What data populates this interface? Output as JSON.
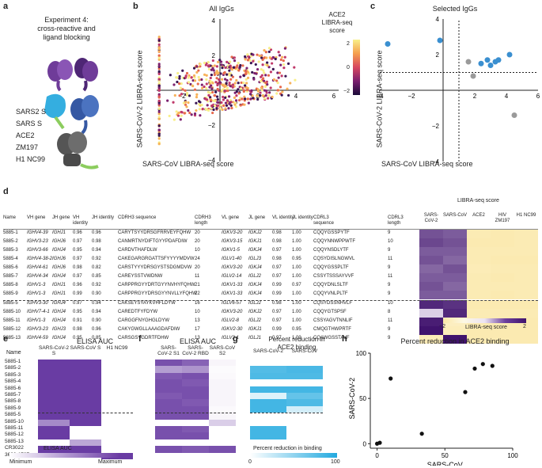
{
  "panels": {
    "a": {
      "letter": "a",
      "title_lines": [
        "Experiment 4:",
        "cross-reactive and",
        "ligand blocking"
      ],
      "labels": [
        "SARS2 S",
        "SARS S",
        "ACE2",
        "ZM197",
        "H1 NC99"
      ],
      "colors": {
        "sars2": "#7b3f9e",
        "sars": "#5b2d82",
        "ace2": "#2ea8dc",
        "zm197": "#3d5fa8",
        "h1": "#5a5a5a"
      }
    },
    "b": {
      "letter": "b",
      "title": "All IgGs",
      "xlabel": "SARS-CoV LIBRA-seq score",
      "ylabel": "SARS-CoV-2 LIBRA-seq score",
      "legend_title_lines": [
        "ACE2",
        "LIBRA-seq",
        "score"
      ],
      "legend_ticks": [
        "2",
        "0",
        "−2"
      ]
    },
    "c": {
      "letter": "c",
      "title": "Selected IgGs",
      "xlabel": "SARS-CoV LIBRA-seq score",
      "ylabel": "SARS-CoV-2 LIBRA-seq score"
    },
    "d": {
      "letter": "d",
      "libra_header": "LIBRA-seq score",
      "colorbar_label": "LIBRA-seq score",
      "colorbar_ticks": [
        "−2",
        "2"
      ]
    },
    "e": {
      "letter": "e",
      "title": "ELISA AUC",
      "name_header": "Name",
      "colorbar_label": "ELISA AUC",
      "min_label": "Minimum",
      "max_label": "Maximum"
    },
    "f": {
      "letter": "f",
      "title": "ELISA AUC"
    },
    "g": {
      "letter": "g",
      "title_lines": [
        "Percent reduction in",
        "ACE2 binding"
      ],
      "colorbar_label": "Percent reduction in binding",
      "colorbar_ticks": [
        "0",
        "100"
      ]
    },
    "h": {
      "letter": "h",
      "title": "Percent reduction in ACE2 binding"
    }
  },
  "table": {
    "headers": [
      "Name",
      "VH gene",
      "JH gene",
      "VH identity",
      "JH identity",
      "CDRH3 sequence",
      "CDRH3 length",
      "VL gene",
      "JL gene",
      "VL identity",
      "JL identity",
      "CDRL3 sequence",
      "CDRL3 length"
    ],
    "libra_cols": [
      "SARS-CoV-2",
      "SARS-CoV",
      "ACE2",
      "HIV ZM197",
      "H1 NC99"
    ],
    "rows": [
      [
        "5885-1",
        "IGHV4-39",
        "IGHJ1",
        "0.96",
        "0.96",
        "CARYTSYYDRSGFRRVEYFQHW",
        "20",
        "IGKV3-20",
        "IGKJ2",
        "0.98",
        "1.00",
        "CQQYGSSPYTF",
        "9"
      ],
      [
        "5885-2",
        "IGHV3-23",
        "IGHJ6",
        "0.97",
        "0.98",
        "CANMRTNYDIFTGYYPDAFDIW",
        "20",
        "IGKV3-15",
        "IGKJ1",
        "0.98",
        "1.00",
        "CQQYNNWPPWTF",
        "10"
      ],
      [
        "5885-3",
        "IGHV3-66",
        "IGHJ4",
        "0.95",
        "0.94",
        "CARDVTHAFDLW",
        "10",
        "IGKV1-5",
        "IGKJ4",
        "0.97",
        "1.00",
        "CQQYNSDLYTF",
        "9"
      ],
      [
        "5885-4",
        "IGHV4-38-2",
        "IGHJ6",
        "0.97",
        "0.92",
        "CAKEGARGRGATTSFYYYYMDVW",
        "24",
        "IGLV1-40",
        "IGLJ3",
        "0.98",
        "0.95",
        "CQSYDISLNGWVL",
        "11"
      ],
      [
        "5885-6",
        "IGHV4-61",
        "IGHJ6",
        "0.98",
        "0.82",
        "CARSTYYYDRSGYSTSDGMDVW",
        "20",
        "IGKV3-20",
        "IGKJ4",
        "0.97",
        "1.00",
        "CQQYGSSPLTF",
        "9"
      ],
      [
        "5885-7",
        "IGHV4-34",
        "IGHJ4",
        "0.97",
        "0.85",
        "CAREYSSTVWDNW",
        "11",
        "IGLV2-14",
        "IGLJ2",
        "0.97",
        "1.00",
        "CSSYTSSSAYVVF",
        "11"
      ],
      [
        "5885-8",
        "IGHV1-3",
        "IGHJ1",
        "0.96",
        "0.92",
        "CARPPRGYYDRTGYYNVHYFQHW",
        "21",
        "IGKV1-33",
        "IGKJ4",
        "0.99",
        "0.97",
        "CQQYDNLSLTF",
        "9"
      ],
      [
        "5885-9",
        "IGHV1-3",
        "IGHJ1",
        "0.99",
        "0.90",
        "CARPPRGYYDRSGYYNVLLYFQHW",
        "22",
        "IGKV1-33",
        "IGKJ4",
        "0.99",
        "1.00",
        "CQQYVNLPLTF",
        "9"
      ],
      [
        "5885-5",
        "IGHV3-30",
        "IGHJ4",
        "0.97",
        "0.94",
        "CAKSEYSYAYKVHFLDYW",
        "16",
        "IGLV6-57",
        "IGLJ2",
        "0.98",
        "1.00",
        "CQSYDSSNHVLF",
        "10"
      ],
      [
        "5885-10",
        "IGHV7-4-1",
        "IGHJ4",
        "0.95",
        "0.94",
        "CAREDTFYFDYW",
        "10",
        "IGKV3-20",
        "IGKJ2",
        "0.97",
        "1.00",
        "CQQYGTSPSF",
        "8"
      ],
      [
        "5885-11",
        "IGHV1-3",
        "IGHJ4",
        "0.91",
        "0.90",
        "CARGGFNYGHGLDYW",
        "13",
        "IGLV2-8",
        "IGLJ2",
        "0.97",
        "1.00",
        "CSSYAGVTNNLIF",
        "11"
      ],
      [
        "5885-12",
        "IGHV3-23",
        "IGHJ3",
        "0.98",
        "0.96",
        "CAKYGWGLLAAAGDAFDIW",
        "17",
        "IGKV2-30",
        "IGKJ1",
        "0.99",
        "0.95",
        "CMQGTHWPRTF",
        "9"
      ],
      [
        "5885-13",
        "IGHV4-59",
        "IGHJ4",
        "0.95",
        "0.85",
        "CARSGSYGDRTFDHW",
        "13",
        "IGLV3-1",
        "IGLJ1",
        "0.97",
        "1.00",
        "CQAWGSSTAVF",
        "9"
      ]
    ],
    "libra_values": [
      [
        1.4,
        1.3,
        -1.6,
        -1.7,
        -1.6
      ],
      [
        1.5,
        1.4,
        -1.7,
        -1.7,
        -1.6
      ],
      [
        1.3,
        1.3,
        -1.6,
        -1.6,
        -1.6
      ],
      [
        1.4,
        1.2,
        -1.6,
        -1.7,
        -1.7
      ],
      [
        1.2,
        1.4,
        -1.5,
        -1.6,
        -1.6
      ],
      [
        1.3,
        1.3,
        -1.6,
        -1.7,
        -1.6
      ],
      [
        1.4,
        1.2,
        -1.6,
        -1.6,
        -1.6
      ],
      [
        1.3,
        1.3,
        -1.6,
        -1.7,
        -1.6
      ],
      [
        1.8,
        1.7,
        -1.7,
        -1.7,
        -1.7
      ],
      [
        0.2,
        1.8,
        -1.6,
        -1.6,
        -1.6
      ],
      [
        1.9,
        -1.2,
        -1.7,
        -1.7,
        -1.7
      ],
      [
        2.0,
        -1.4,
        -1.7,
        -1.7,
        -1.7
      ],
      [
        -1.5,
        2.0,
        -1.7,
        -1.7,
        -1.7
      ]
    ]
  },
  "elisa": {
    "names": [
      "5885-1",
      "5885-2",
      "5885-3",
      "5885-4",
      "5885-6",
      "5885-7",
      "5885-8",
      "5885-9",
      "5885-5",
      "5885-10",
      "5885-11",
      "5885-12",
      "5885-13",
      "CR3022",
      "3602-1707"
    ],
    "e_cols": [
      "SARS-CoV-2 S",
      "SARS-CoV S",
      "H1 NC99"
    ],
    "e_values": [
      [
        1,
        1,
        0
      ],
      [
        1,
        1,
        0
      ],
      [
        1,
        1,
        0
      ],
      [
        1,
        1,
        0
      ],
      [
        1,
        1,
        0
      ],
      [
        1,
        1,
        0
      ],
      [
        1,
        1,
        0
      ],
      [
        1,
        1,
        0
      ],
      [
        1,
        1,
        0
      ],
      [
        0.6,
        1,
        0
      ],
      [
        1,
        0,
        0
      ],
      [
        1,
        0,
        0
      ],
      [
        0,
        0.45,
        0
      ],
      [
        1,
        1,
        0
      ],
      [
        0,
        0,
        1
      ]
    ],
    "f_cols": [
      "SARS-CoV-2 S1",
      "SARS-CoV-2 RBD",
      "SARS-CoV S2"
    ],
    "f_values": [
      [
        0.9,
        0.8,
        0.05
      ],
      [
        0.5,
        0.55,
        0.02
      ],
      [
        0.85,
        0.9,
        0.03
      ],
      [
        0.9,
        0.85,
        0.05
      ],
      [
        0.9,
        0.9,
        0.05
      ],
      [
        0.85,
        0.9,
        0.05
      ],
      [
        0.9,
        0.85,
        0.05
      ],
      [
        0.9,
        0.9,
        0.03
      ],
      [
        0.9,
        0.9,
        0.05
      ],
      [
        0,
        0,
        0.25
      ],
      [
        0.9,
        0.85,
        0.0
      ],
      [
        0.9,
        0.9,
        0.0
      ],
      [
        0,
        0,
        0.0
      ],
      [
        0.9,
        0.85,
        0.9
      ],
      [
        0,
        0,
        0
      ]
    ],
    "g_cols": [
      "SARS-CoV-2",
      "SARS-CoV"
    ],
    "g_values": [
      [
        0,
        0
      ],
      [
        0.78,
        0.82
      ],
      [
        0.8,
        0.8
      ],
      [
        0,
        0
      ],
      [
        0.85,
        0.85
      ],
      [
        0.15,
        0.7
      ],
      [
        0.85,
        0.8
      ],
      [
        0.85,
        0.2
      ],
      [
        0,
        0
      ],
      [
        0,
        0
      ],
      [
        0.85,
        0
      ],
      [
        0.85,
        0
      ],
      [
        0,
        0
      ],
      [
        0,
        0
      ],
      [
        0,
        0
      ]
    ]
  },
  "chart_data": [
    {
      "type": "scatter",
      "title": "Selected IgGs",
      "xlabel": "SARS-CoV LIBRA-seq score",
      "ylabel": "SARS-CoV-2 LIBRA-seq score",
      "xlim": [
        -4,
        6
      ],
      "ylim": [
        -4,
        4
      ],
      "x_ticks": [
        -4,
        -2,
        2,
        4,
        6
      ],
      "y_ticks": [
        -4,
        -2,
        2,
        4
      ],
      "series": [
        {
          "color": "#3a8fd0",
          "x": [
            -3.5,
            -0.2,
            2.4,
            2.8,
            3.0,
            3.3,
            3.5,
            4.2
          ],
          "y": [
            2.6,
            2.8,
            1.5,
            1.7,
            1.4,
            1.6,
            1.7,
            2.0
          ]
        },
        {
          "color": "#9a9a9a",
          "x": [
            1.6,
            1.9,
            4.5
          ],
          "y": [
            1.6,
            0.8,
            -1.4
          ]
        }
      ]
    },
    {
      "type": "scatter",
      "title": "Percent reduction in ACE2 binding",
      "xlabel": "SARS-CoV",
      "ylabel": "SARS-CoV-2",
      "xlim": [
        -5,
        100
      ],
      "ylim": [
        -5,
        100
      ],
      "x_ticks": [
        0,
        50,
        100
      ],
      "y_ticks": [
        0,
        50,
        100
      ],
      "series": [
        {
          "color": "#111111",
          "x": [
            0,
            2,
            10,
            33,
            65,
            72,
            78,
            85
          ],
          "y": [
            0,
            1,
            72,
            11,
            57,
            83,
            88,
            86
          ]
        }
      ]
    }
  ]
}
